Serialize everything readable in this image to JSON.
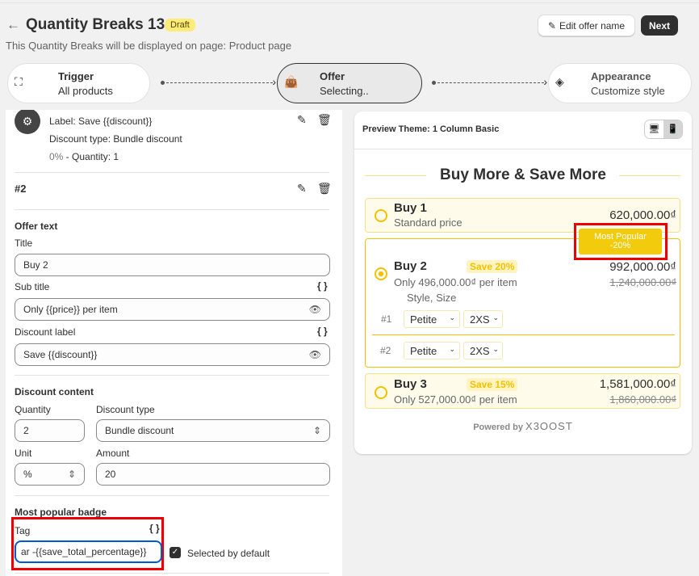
{
  "header": {
    "title": "Quantity Breaks 13",
    "status": "Draft",
    "subtitle": "This Quantity Breaks will be displayed on page: Product page",
    "edit_label": "Edit offer name",
    "next_label": "Next"
  },
  "steps": [
    {
      "title": "Trigger",
      "sub": "All products",
      "icon": "sitemap-icon"
    },
    {
      "title": "Offer",
      "sub": "Selecting..",
      "icon": "shopping-bag-icon"
    },
    {
      "title": "Appearance",
      "sub": "Customize style",
      "icon": "paint-bucket-icon"
    }
  ],
  "tier1": {
    "label": "Label: Save {{discount}}",
    "type": "Discount type: Bundle discount",
    "pct": "0%",
    "qty": " - Quantity: 1"
  },
  "tier2": {
    "heading": "#2"
  },
  "offer_text": {
    "heading": "Offer text",
    "title_label": "Title",
    "title_value": "Buy 2",
    "subtitle_label": "Sub title",
    "subtitle_value": "Only {{price}} per item",
    "discount_label_label": "Discount label",
    "discount_label_value": "Save {{discount}}",
    "brace": "{ }"
  },
  "discount_content": {
    "heading": "Discount content",
    "quantity_label": "Quantity",
    "quantity_value": "2",
    "type_label": "Discount type",
    "type_value": "Bundle discount",
    "unit_label": "Unit",
    "unit_value": "%",
    "amount_label": "Amount",
    "amount_value": "20"
  },
  "badge": {
    "heading": "Most popular badge",
    "tag_label": "Tag",
    "tag_value": "ar -{{save_total_percentage}}",
    "selected_label": "Selected by default",
    "selected": true
  },
  "preview": {
    "header": "Preview Theme: 1 Column Basic",
    "title": "Buy More & Save More",
    "accent": "#f2c200",
    "rows": [
      {
        "title": "Buy 1",
        "sub": "Standard price",
        "price": "620,000.00₫",
        "selected": false
      },
      {
        "title": "Buy 2",
        "save": "Save 20%",
        "sub": "Only 496,000.00₫ per item",
        "price": "992,000.00₫",
        "old": "1,240,000.00₫",
        "selected": true,
        "variant_label": "Style, Size",
        "badge_line1": "Most Popular",
        "badge_line2": "-20%",
        "variants": [
          {
            "n": "#1",
            "style": "Petite",
            "size": "2XS"
          },
          {
            "n": "#2",
            "style": "Petite",
            "size": "2XS"
          }
        ]
      },
      {
        "title": "Buy 3",
        "save": "Save 15%",
        "sub": "Only 527,000.00₫ per item",
        "price": "1,581,000.00₫",
        "old": "1,860,000.00₫",
        "selected": false
      }
    ],
    "powered": "Powered by",
    "brand": "X3OOST"
  }
}
